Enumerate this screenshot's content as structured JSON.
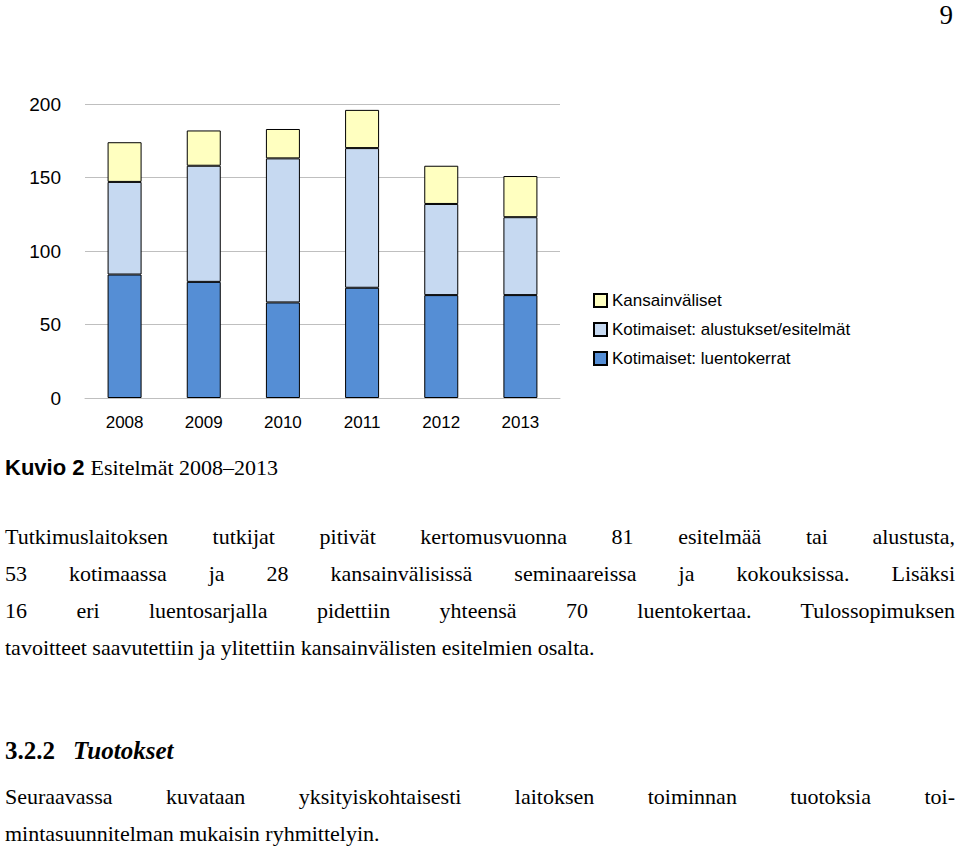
{
  "page_number": "9",
  "chart_data": {
    "type": "bar",
    "stacked": true,
    "categories": [
      "2008",
      "2009",
      "2010",
      "2011",
      "2012",
      "2013"
    ],
    "series": [
      {
        "name": "Kotimaiset: luentokerrat",
        "color": "#558ed5",
        "values": [
          84,
          79,
          65,
          75,
          70,
          70
        ]
      },
      {
        "name": "Kotimaiset: alustukset/esitelmät",
        "color": "#c6d9f1",
        "values": [
          63,
          79,
          98,
          95,
          62,
          53
        ]
      },
      {
        "name": "Kansainväliset",
        "color": "#ffffc0",
        "values": [
          27,
          24,
          20,
          26,
          26,
          28
        ]
      }
    ],
    "ylim": [
      0,
      200
    ],
    "yticks": [
      0,
      50,
      100,
      150,
      200
    ],
    "grid": true,
    "legend": "right"
  },
  "caption": {
    "label": "Kuvio 2",
    "text": "Esitelmät 2008–2013"
  },
  "paragraphs": [
    {
      "lines": [
        "Tutkimuslaitoksen tutkijat pitivät kertomusvuonna 81 esitelmää tai alustusta,",
        "53 kotimaassa ja 28 kansainvälisissä seminaareissa ja kokouksissa. Lisäksi",
        "16 eri luentosarjalla pidettiin yhteensä 70 luentokertaa. Tulossopimuksen",
        "tavoitteet saavutettiin ja ylitettiin kansainvälisten esitelmien osalta."
      ]
    },
    {
      "lines": [
        "Seuraavassa kuvataan yksityiskohtaisesti laitoksen toiminnan tuotoksia toi-",
        "mintasuunnitelman mukaisin ryhmittelyin."
      ]
    }
  ],
  "heading": {
    "number": "3.2.2",
    "title": "Tuotokset"
  }
}
